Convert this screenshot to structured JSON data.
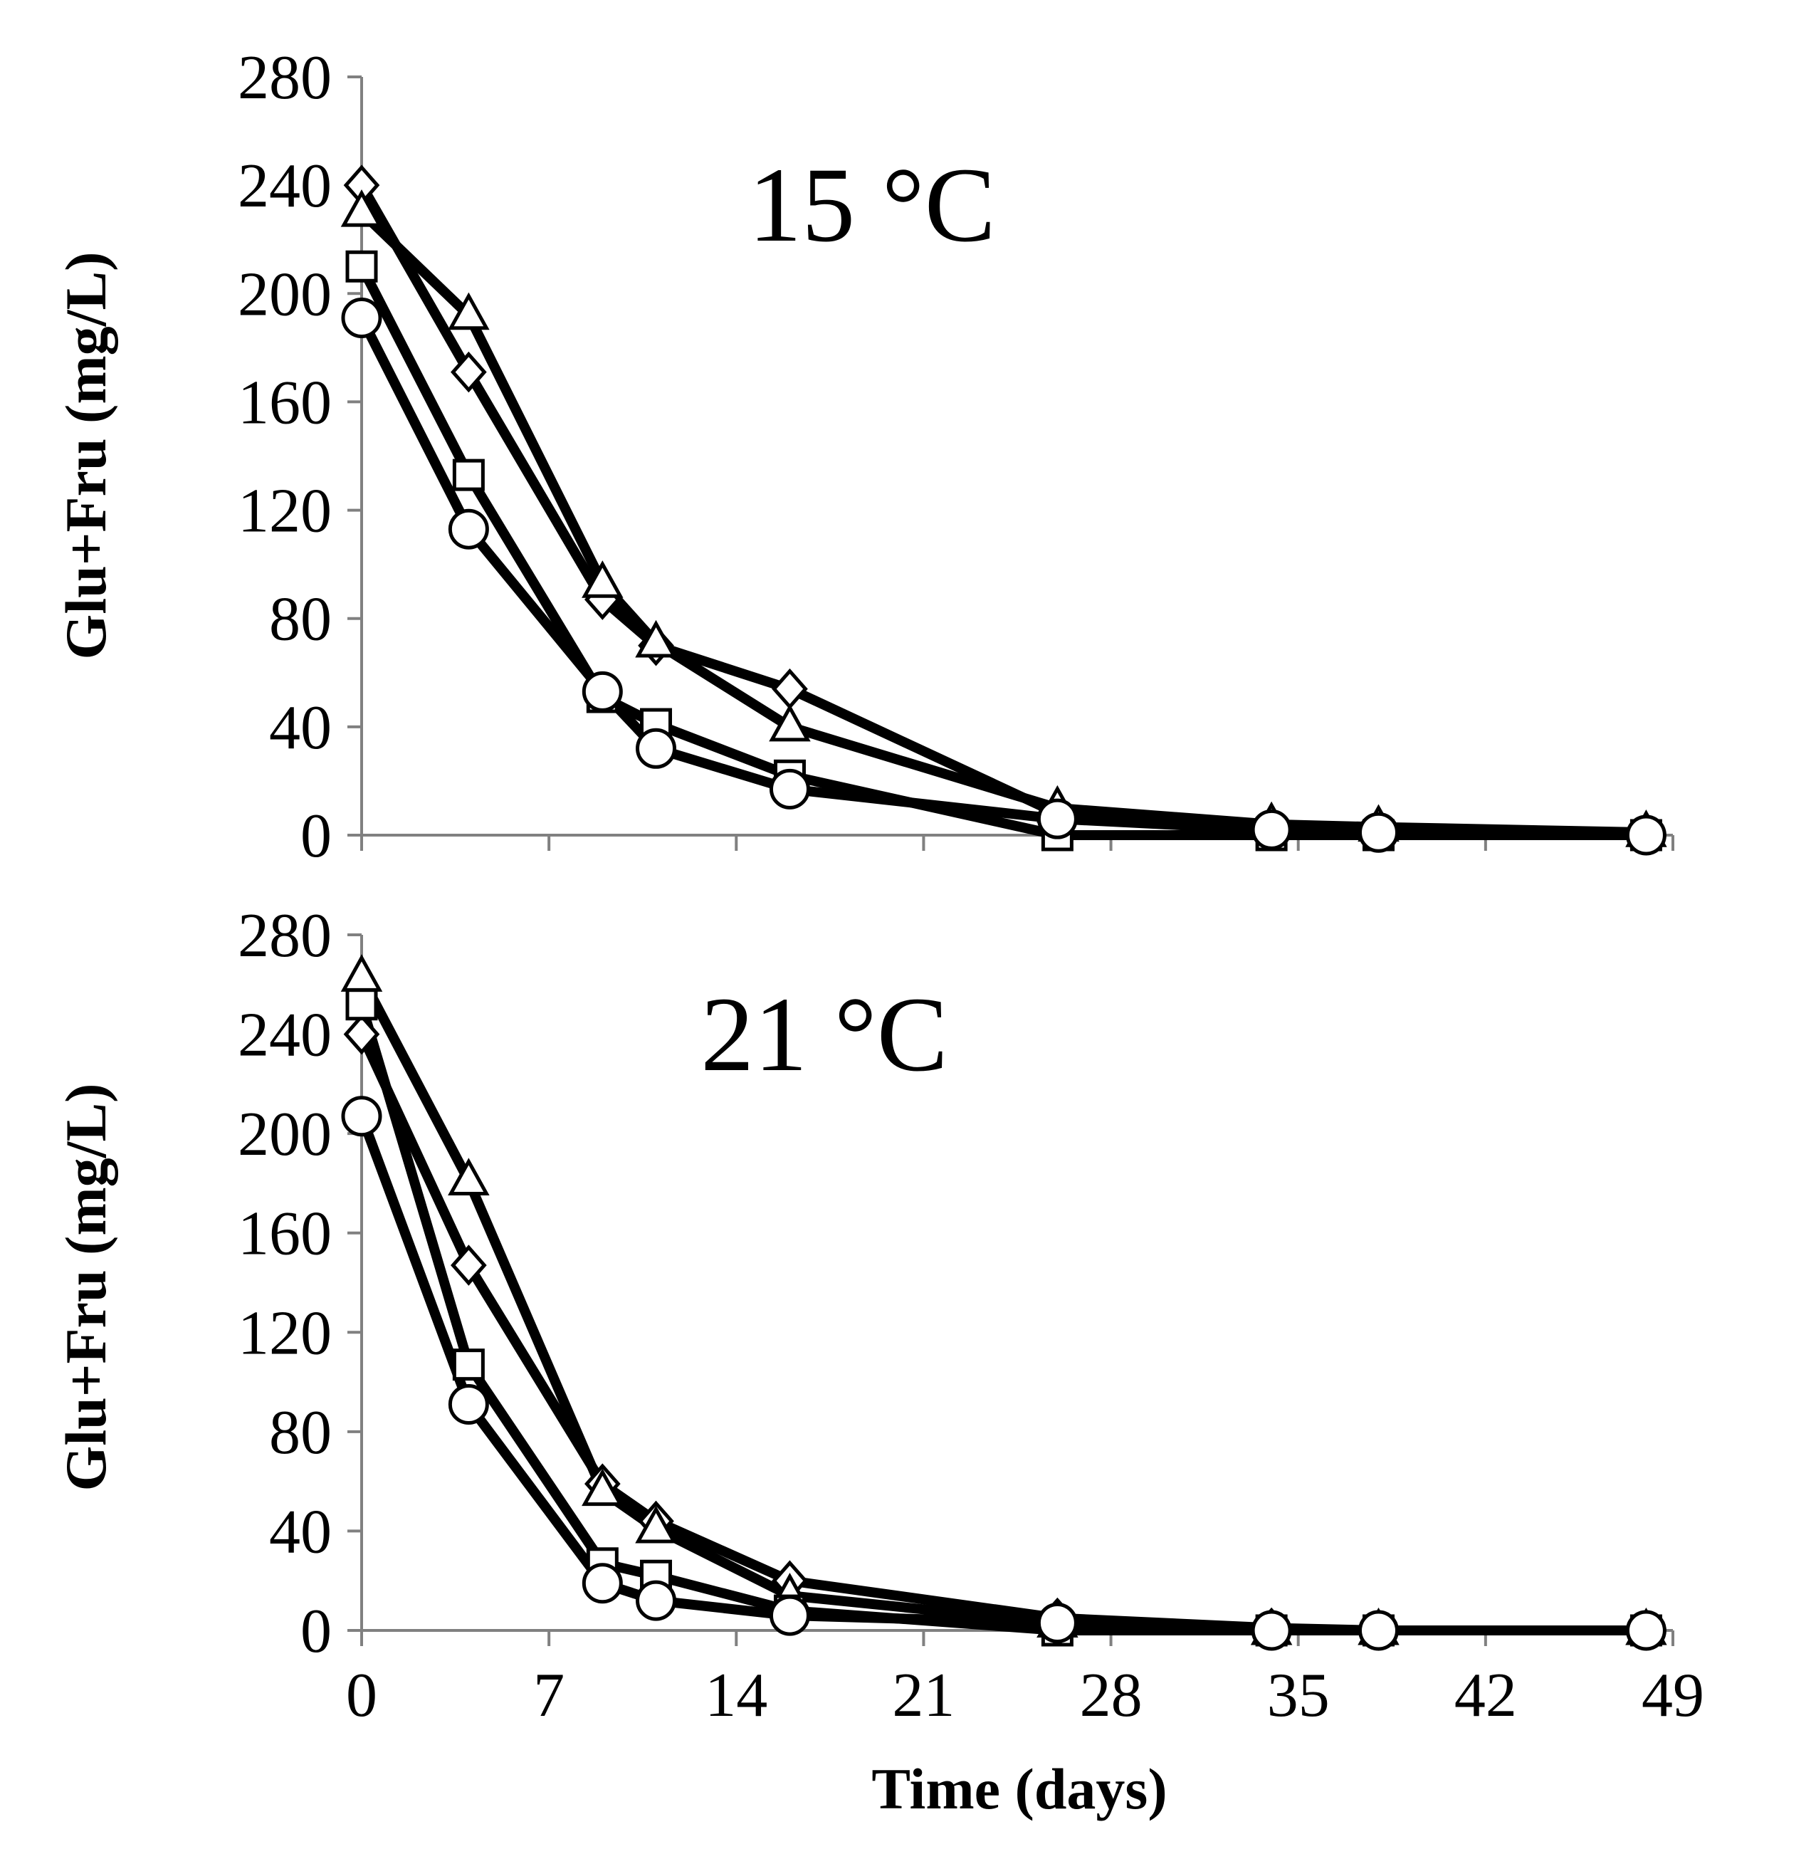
{
  "figure": {
    "xlabel": "Time (days)",
    "colors": {
      "line": "#000000",
      "axis": "#808080",
      "marker_fill": "#ffffff"
    }
  },
  "chart_data": [
    {
      "type": "line",
      "title": "15 °C",
      "xlabel": "",
      "ylabel": "Glu+Fru (mg/L)",
      "xlim": [
        0,
        49
      ],
      "ylim": [
        0,
        280
      ],
      "xticks": [
        0,
        7,
        14,
        21,
        28,
        35,
        42,
        49
      ],
      "yticks": [
        0,
        40,
        80,
        120,
        160,
        200,
        240,
        280
      ],
      "x": [
        0,
        4,
        9,
        11,
        16,
        26,
        34,
        38,
        48
      ],
      "series": [
        {
          "name": "diamond",
          "marker": "diamond",
          "values": [
            240,
            171,
            87,
            70,
            54,
            8,
            3,
            2,
            0
          ]
        },
        {
          "name": "triangle",
          "marker": "triangle",
          "values": [
            230,
            192,
            93,
            71,
            40,
            10,
            4,
            3,
            1
          ]
        },
        {
          "name": "square",
          "marker": "square",
          "values": [
            210,
            133,
            51,
            41,
            22,
            0,
            0,
            0,
            0
          ]
        },
        {
          "name": "circle",
          "marker": "circle",
          "values": [
            191,
            113,
            53,
            32,
            17,
            6,
            2,
            1,
            0
          ]
        }
      ]
    },
    {
      "type": "line",
      "title": "21 °C",
      "xlabel": "Time (days)",
      "ylabel": "Glu+Fru (mg/L)",
      "xlim": [
        0,
        49
      ],
      "ylim": [
        0,
        280
      ],
      "xticks": [
        0,
        7,
        14,
        21,
        28,
        35,
        42,
        49
      ],
      "yticks": [
        0,
        40,
        80,
        120,
        160,
        200,
        240,
        280
      ],
      "x": [
        0,
        4,
        9,
        11,
        16,
        26,
        34,
        38,
        48
      ],
      "series": [
        {
          "name": "diamond",
          "marker": "diamond",
          "values": [
            240,
            147,
            59,
            44,
            20,
            5,
            1,
            0,
            0
          ]
        },
        {
          "name": "triangle",
          "marker": "triangle",
          "values": [
            263,
            181,
            56,
            41,
            14,
            3,
            0,
            0,
            0
          ]
        },
        {
          "name": "square",
          "marker": "square",
          "values": [
            252,
            107,
            27,
            22,
            8,
            0,
            0,
            0,
            0
          ]
        },
        {
          "name": "circle",
          "marker": "circle",
          "values": [
            207,
            91,
            19,
            12,
            6,
            3,
            0,
            0,
            0
          ]
        }
      ]
    }
  ]
}
